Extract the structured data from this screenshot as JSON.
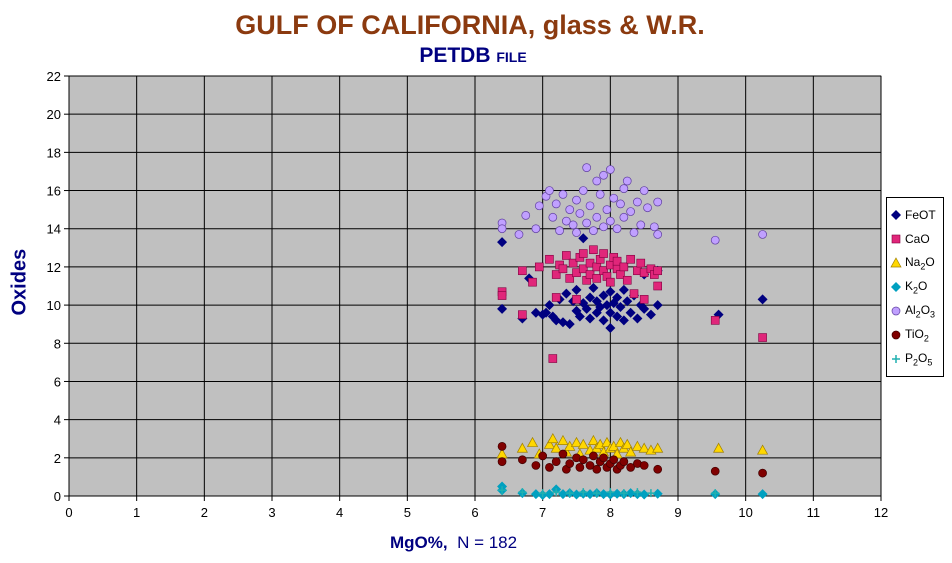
{
  "title": "GULF OF CALIFORNIA, glass & W.R.",
  "subtitle_main": "PETDB",
  "subtitle_small": "FILE",
  "xlabel_main": "MgO%,",
  "xlabel_n": "N = 182",
  "ylabel": "Oxides",
  "colors": {
    "plot_bg": "#c0c0c0",
    "grid": "#000000",
    "title": "#8b3a0f",
    "axis_title": "#000080"
  },
  "legend": [
    {
      "name": "FeOT",
      "pre": "FeOT",
      "sub": "",
      "post": "",
      "post_sub": "",
      "post2": ""
    },
    {
      "name": "CaO",
      "pre": "CaO",
      "sub": "",
      "post": "",
      "post_sub": "",
      "post2": ""
    },
    {
      "name": "Na2O",
      "pre": "Na",
      "sub": "2",
      "post": "O",
      "post_sub": "",
      "post2": ""
    },
    {
      "name": "K2O",
      "pre": "K",
      "sub": "2",
      "post": "O",
      "post_sub": "",
      "post2": ""
    },
    {
      "name": "Al2O3",
      "pre": "Al",
      "sub": "2",
      "post": "O",
      "post_sub": "3",
      "post2": ""
    },
    {
      "name": "TiO2",
      "pre": "TiO",
      "sub": "2",
      "post": "",
      "post_sub": "",
      "post2": ""
    },
    {
      "name": "P2O5",
      "pre": "P",
      "sub": "2",
      "post": "O",
      "post_sub": "5",
      "post2": ""
    }
  ],
  "chart_data": {
    "type": "scatter",
    "title": "GULF OF CALIFORNIA, glass & W.R.",
    "subtitle": "PETDB FILE",
    "xlabel": "MgO%,  N = 182",
    "ylabel": "Oxides",
    "xlim": [
      0,
      12
    ],
    "ylim": [
      0,
      22
    ],
    "xticks": [
      0,
      1,
      2,
      3,
      4,
      5,
      6,
      7,
      8,
      9,
      10,
      11,
      12
    ],
    "yticks": [
      0,
      2,
      4,
      6,
      8,
      10,
      12,
      14,
      16,
      18,
      20,
      22
    ],
    "grid": true,
    "legend_position": "right",
    "series": [
      {
        "name": "FeOT",
        "marker": "diamond",
        "color": "#000080",
        "points": [
          [
            6.4,
            13.3
          ],
          [
            6.4,
            9.8
          ],
          [
            6.7,
            9.3
          ],
          [
            6.8,
            11.4
          ],
          [
            6.9,
            9.6
          ],
          [
            7.0,
            9.5
          ],
          [
            7.05,
            9.6
          ],
          [
            7.1,
            10.0
          ],
          [
            7.15,
            9.4
          ],
          [
            7.2,
            9.2
          ],
          [
            7.25,
            10.3
          ],
          [
            7.3,
            9.1
          ],
          [
            7.35,
            10.6
          ],
          [
            7.4,
            9.0
          ],
          [
            7.45,
            10.2
          ],
          [
            7.5,
            9.7
          ],
          [
            7.5,
            10.8
          ],
          [
            7.55,
            9.4
          ],
          [
            7.6,
            10.1
          ],
          [
            7.6,
            13.5
          ],
          [
            7.65,
            9.8
          ],
          [
            7.7,
            10.4
          ],
          [
            7.7,
            9.3
          ],
          [
            7.75,
            10.9
          ],
          [
            7.8,
            9.6
          ],
          [
            7.8,
            10.2
          ],
          [
            7.85,
            9.9
          ],
          [
            7.9,
            10.5
          ],
          [
            7.9,
            9.2
          ],
          [
            7.95,
            10.0
          ],
          [
            8.0,
            9.6
          ],
          [
            8.0,
            8.8
          ],
          [
            8.0,
            10.7
          ],
          [
            8.05,
            10.1
          ],
          [
            8.1,
            9.4
          ],
          [
            8.1,
            10.4
          ],
          [
            8.15,
            9.9
          ],
          [
            8.2,
            10.8
          ],
          [
            8.2,
            9.2
          ],
          [
            8.25,
            10.2
          ],
          [
            8.3,
            9.6
          ],
          [
            8.35,
            10.5
          ],
          [
            8.4,
            9.3
          ],
          [
            8.45,
            10.0
          ],
          [
            8.5,
            9.8
          ],
          [
            8.5,
            11.6
          ],
          [
            8.6,
            9.5
          ],
          [
            8.7,
            10.0
          ],
          [
            8.7,
            11.8
          ],
          [
            9.6,
            9.5
          ],
          [
            10.25,
            10.3
          ]
        ]
      },
      {
        "name": "CaO",
        "marker": "square",
        "color": "#e0267a",
        "points": [
          [
            6.4,
            10.7
          ],
          [
            6.4,
            10.5
          ],
          [
            6.7,
            11.8
          ],
          [
            6.7,
            9.5
          ],
          [
            6.85,
            11.2
          ],
          [
            6.95,
            12.0
          ],
          [
            7.1,
            12.4
          ],
          [
            7.15,
            7.2
          ],
          [
            7.2,
            11.6
          ],
          [
            7.2,
            10.4
          ],
          [
            7.25,
            12.1
          ],
          [
            7.3,
            11.9
          ],
          [
            7.35,
            12.6
          ],
          [
            7.4,
            11.4
          ],
          [
            7.45,
            12.2
          ],
          [
            7.5,
            11.7
          ],
          [
            7.5,
            10.3
          ],
          [
            7.55,
            12.5
          ],
          [
            7.6,
            11.9
          ],
          [
            7.6,
            12.7
          ],
          [
            7.65,
            11.3
          ],
          [
            7.7,
            12.2
          ],
          [
            7.7,
            11.6
          ],
          [
            7.75,
            12.9
          ],
          [
            7.8,
            12.0
          ],
          [
            7.8,
            11.4
          ],
          [
            7.85,
            12.4
          ],
          [
            7.9,
            11.8
          ],
          [
            7.9,
            12.7
          ],
          [
            7.95,
            11.5
          ],
          [
            8.0,
            12.1
          ],
          [
            8.0,
            11.2
          ],
          [
            8.05,
            12.5
          ],
          [
            8.1,
            11.9
          ],
          [
            8.1,
            12.3
          ],
          [
            8.15,
            11.6
          ],
          [
            8.2,
            12.0
          ],
          [
            8.25,
            11.3
          ],
          [
            8.3,
            12.4
          ],
          [
            8.35,
            10.6
          ],
          [
            8.4,
            11.8
          ],
          [
            8.45,
            12.2
          ],
          [
            8.5,
            11.7
          ],
          [
            8.5,
            10.3
          ],
          [
            8.6,
            11.9
          ],
          [
            8.65,
            11.6
          ],
          [
            8.7,
            11.0
          ],
          [
            8.7,
            11.8
          ],
          [
            9.55,
            9.2
          ],
          [
            10.25,
            8.3
          ]
        ]
      },
      {
        "name": "Na2O",
        "marker": "triangle",
        "color": "#ffd700",
        "points": [
          [
            6.4,
            2.2
          ],
          [
            6.7,
            2.5
          ],
          [
            6.85,
            2.8
          ],
          [
            6.95,
            2.2
          ],
          [
            7.1,
            2.7
          ],
          [
            7.15,
            3.0
          ],
          [
            7.2,
            2.5
          ],
          [
            7.3,
            2.9
          ],
          [
            7.35,
            2.3
          ],
          [
            7.4,
            2.6
          ],
          [
            7.5,
            2.8
          ],
          [
            7.55,
            2.2
          ],
          [
            7.6,
            2.7
          ],
          [
            7.7,
            2.4
          ],
          [
            7.75,
            2.9
          ],
          [
            7.8,
            2.5
          ],
          [
            7.85,
            2.7
          ],
          [
            7.9,
            2.3
          ],
          [
            7.95,
            2.8
          ],
          [
            8.0,
            2.5
          ],
          [
            8.05,
            2.6
          ],
          [
            8.1,
            2.2
          ],
          [
            8.15,
            2.8
          ],
          [
            8.2,
            2.5
          ],
          [
            8.25,
            2.7
          ],
          [
            8.3,
            2.3
          ],
          [
            8.4,
            2.6
          ],
          [
            8.5,
            2.5
          ],
          [
            8.6,
            2.4
          ],
          [
            8.7,
            2.5
          ],
          [
            9.6,
            2.5
          ],
          [
            10.25,
            2.4
          ]
        ]
      },
      {
        "name": "K2O",
        "marker": "diamond",
        "color": "#00a0c0",
        "points": [
          [
            6.4,
            0.5
          ],
          [
            6.4,
            0.3
          ],
          [
            6.7,
            0.15
          ],
          [
            6.9,
            0.1
          ],
          [
            7.0,
            0.05
          ],
          [
            7.1,
            0.1
          ],
          [
            7.2,
            0.35
          ],
          [
            7.3,
            0.1
          ],
          [
            7.4,
            0.15
          ],
          [
            7.5,
            0.08
          ],
          [
            7.6,
            0.12
          ],
          [
            7.7,
            0.1
          ],
          [
            7.8,
            0.15
          ],
          [
            7.9,
            0.1
          ],
          [
            8.0,
            0.08
          ],
          [
            8.1,
            0.12
          ],
          [
            8.2,
            0.1
          ],
          [
            8.3,
            0.15
          ],
          [
            8.4,
            0.1
          ],
          [
            8.5,
            0.08
          ],
          [
            8.7,
            0.12
          ],
          [
            9.55,
            0.1
          ],
          [
            10.25,
            0.1
          ]
        ]
      },
      {
        "name": "Al2O3",
        "marker": "circle",
        "color": "#c0a0ff",
        "points": [
          [
            6.4,
            14.3
          ],
          [
            6.4,
            14.0
          ],
          [
            6.65,
            13.7
          ],
          [
            6.75,
            14.7
          ],
          [
            6.9,
            14.0
          ],
          [
            6.95,
            15.2
          ],
          [
            7.05,
            15.7
          ],
          [
            7.1,
            16.0
          ],
          [
            7.15,
            14.6
          ],
          [
            7.2,
            15.3
          ],
          [
            7.25,
            13.9
          ],
          [
            7.3,
            15.8
          ],
          [
            7.35,
            14.4
          ],
          [
            7.4,
            15.0
          ],
          [
            7.45,
            14.2
          ],
          [
            7.5,
            15.5
          ],
          [
            7.5,
            13.8
          ],
          [
            7.55,
            14.8
          ],
          [
            7.6,
            16.0
          ],
          [
            7.65,
            14.3
          ],
          [
            7.65,
            17.2
          ],
          [
            7.7,
            15.2
          ],
          [
            7.75,
            13.9
          ],
          [
            7.8,
            16.5
          ],
          [
            7.8,
            14.6
          ],
          [
            7.85,
            15.8
          ],
          [
            7.9,
            14.1
          ],
          [
            7.9,
            16.8
          ],
          [
            7.95,
            15.0
          ],
          [
            8.0,
            14.4
          ],
          [
            8.0,
            17.1
          ],
          [
            8.05,
            15.6
          ],
          [
            8.1,
            14.0
          ],
          [
            8.15,
            15.3
          ],
          [
            8.2,
            16.1
          ],
          [
            8.2,
            14.6
          ],
          [
            8.25,
            16.5
          ],
          [
            8.3,
            14.9
          ],
          [
            8.35,
            13.8
          ],
          [
            8.4,
            15.4
          ],
          [
            8.45,
            14.2
          ],
          [
            8.5,
            16.0
          ],
          [
            8.55,
            15.1
          ],
          [
            8.65,
            14.1
          ],
          [
            8.7,
            15.4
          ],
          [
            8.7,
            13.7
          ],
          [
            9.55,
            13.4
          ],
          [
            10.25,
            13.7
          ]
        ]
      },
      {
        "name": "TiO2",
        "marker": "circle",
        "color": "#800000",
        "points": [
          [
            6.4,
            2.6
          ],
          [
            6.4,
            1.8
          ],
          [
            6.7,
            1.9
          ],
          [
            6.9,
            1.6
          ],
          [
            7.0,
            2.1
          ],
          [
            7.1,
            1.5
          ],
          [
            7.2,
            1.8
          ],
          [
            7.3,
            2.2
          ],
          [
            7.35,
            1.4
          ],
          [
            7.4,
            1.7
          ],
          [
            7.5,
            2.0
          ],
          [
            7.55,
            1.5
          ],
          [
            7.6,
            1.9
          ],
          [
            7.7,
            1.6
          ],
          [
            7.75,
            2.1
          ],
          [
            7.8,
            1.4
          ],
          [
            7.85,
            1.8
          ],
          [
            7.9,
            2.0
          ],
          [
            7.95,
            1.5
          ],
          [
            8.0,
            1.7
          ],
          [
            8.05,
            1.9
          ],
          [
            8.1,
            1.4
          ],
          [
            8.15,
            1.6
          ],
          [
            8.2,
            1.8
          ],
          [
            8.3,
            1.5
          ],
          [
            8.4,
            1.7
          ],
          [
            8.5,
            1.6
          ],
          [
            8.7,
            1.4
          ],
          [
            9.55,
            1.3
          ],
          [
            10.25,
            1.2
          ]
        ]
      },
      {
        "name": "P2O5",
        "marker": "plus",
        "color": "#20b0b0",
        "points": [
          [
            6.4,
            0.3
          ],
          [
            6.7,
            0.2
          ],
          [
            7.0,
            0.15
          ],
          [
            7.2,
            0.2
          ],
          [
            7.4,
            0.15
          ],
          [
            7.6,
            0.2
          ],
          [
            7.8,
            0.15
          ],
          [
            8.0,
            0.2
          ],
          [
            8.2,
            0.15
          ],
          [
            8.4,
            0.2
          ],
          [
            8.6,
            0.15
          ],
          [
            9.55,
            0.15
          ]
        ]
      }
    ]
  }
}
